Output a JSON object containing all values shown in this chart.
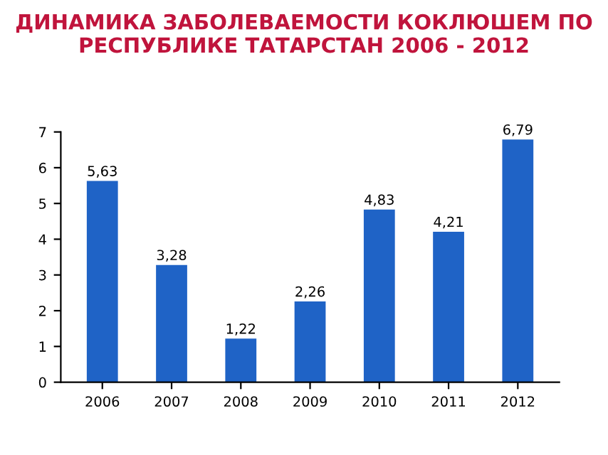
{
  "chart_data": {
    "type": "bar",
    "title": "ДИНАМИКА ЗАБОЛЕВАЕМОСТИ КОКЛЮШЕМ ПО\nРЕСПУБЛИКЕ ТАТАРСТАН 2006 - 2012",
    "categories": [
      "2006",
      "2007",
      "2008",
      "2009",
      "2010",
      "2011",
      "2012"
    ],
    "values": [
      5.63,
      3.28,
      1.22,
      2.26,
      4.83,
      4.21,
      6.79
    ],
    "value_labels": [
      "5,63",
      "3,28",
      "1,22",
      "2,26",
      "4,83",
      "4,21",
      "6,79"
    ],
    "color": "#1f63c6",
    "ylim": [
      0,
      7
    ],
    "yticks": [
      0,
      1,
      2,
      3,
      4,
      5,
      6,
      7
    ],
    "grid": false
  }
}
